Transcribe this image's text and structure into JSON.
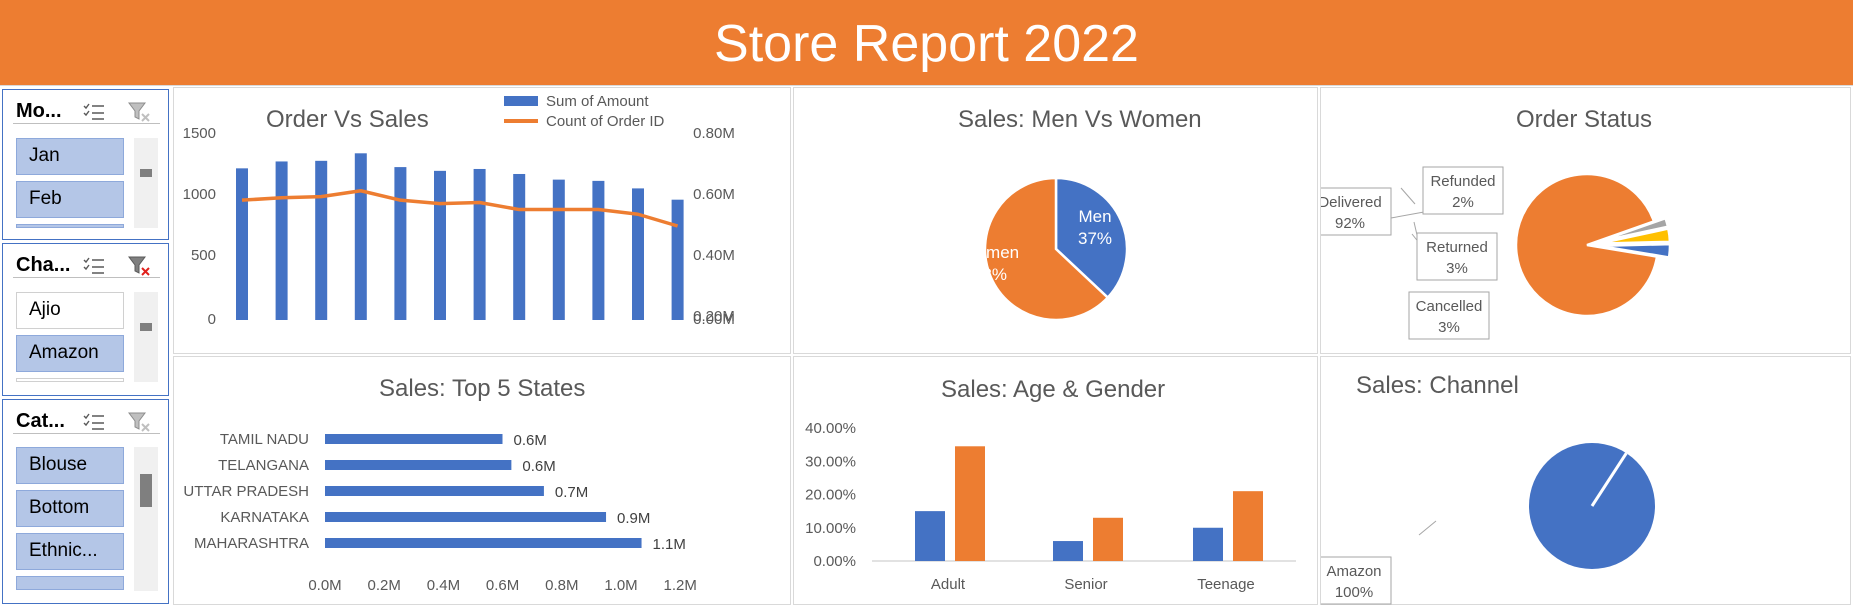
{
  "banner": {
    "title": "Store Report 2022",
    "color": "#ED7D31"
  },
  "slicers": [
    {
      "title": "Mo...",
      "items": [
        {
          "label": "Jan",
          "selected": true
        },
        {
          "label": "Feb",
          "selected": true
        }
      ]
    },
    {
      "title": "Cha...",
      "items": [
        {
          "label": "Ajio",
          "selected": false
        },
        {
          "label": "Amazon",
          "selected": true
        }
      ]
    },
    {
      "title": "Cat...",
      "items": [
        {
          "label": "Blouse",
          "selected": true
        },
        {
          "label": "Bottom",
          "selected": true
        },
        {
          "label": "Ethnic...",
          "selected": true
        }
      ]
    }
  ],
  "slicer_icons": [
    "multi-select-icon",
    "clear-filter-icon"
  ],
  "colors": {
    "blue": "#4472C4",
    "orange": "#ED7D31",
    "yellow": "#FFC000",
    "gray": "#A5A5A5"
  },
  "chart_data": [
    {
      "type": "bar+line",
      "title": "Order Vs Sales",
      "legend": [
        "Sum of Amount",
        "Count of Order ID"
      ],
      "legend_position": "top-right",
      "series": [
        {
          "name": "Sum of Amount",
          "type": "bar",
          "axis": "left",
          "values": [
            1210,
            1265,
            1270,
            1330,
            1220,
            1190,
            1205,
            1165,
            1120,
            1110,
            1050,
            960
          ]
        },
        {
          "name": "Count of Order ID",
          "type": "line",
          "axis": "right",
          "values": [
            0.51,
            0.52,
            0.525,
            0.55,
            0.51,
            0.495,
            0.5,
            0.47,
            0.47,
            0.47,
            0.45,
            0.4
          ]
        }
      ],
      "y_left": {
        "ticks": [
          "1500",
          "1000",
          "500",
          "0"
        ],
        "range": [
          0,
          1500
        ]
      },
      "y_right": {
        "ticks": [
          "0.80M",
          "0.60M",
          "0.40M",
          "0.20M",
          "0.00M"
        ],
        "range": [
          0,
          0.8
        ]
      }
    },
    {
      "type": "pie",
      "title": "Sales: Men Vs Women",
      "slices": [
        {
          "label": "Men",
          "pct": "37%",
          "value": 37,
          "color": "#4472C4"
        },
        {
          "label": "Women",
          "pct": "63%",
          "value": 63,
          "color": "#ED7D31"
        }
      ]
    },
    {
      "type": "pie",
      "title": "Order Status",
      "slices": [
        {
          "label": "Delivered",
          "pct": "92%",
          "value": 92,
          "color": "#ED7D31"
        },
        {
          "label": "Refunded",
          "pct": "2%",
          "value": 2,
          "color": "#A5A5A5"
        },
        {
          "label": "Returned",
          "pct": "3%",
          "value": 3,
          "color": "#FFC000"
        },
        {
          "label": "Cancelled",
          "pct": "3%",
          "value": 3,
          "color": "#4472C4"
        }
      ]
    },
    {
      "type": "bar",
      "orientation": "horizontal",
      "title": "Sales: Top 5 States",
      "categories": [
        "TAMIL NADU",
        "TELANGANA",
        "UTTAR PRADESH",
        "KARNATAKA",
        "MAHARASHTRA"
      ],
      "values": [
        0.6,
        0.63,
        0.74,
        0.95,
        1.07
      ],
      "labels": [
        "0.6M",
        "0.6M",
        "0.7M",
        "0.9M",
        "1.1M"
      ],
      "x_ticks": [
        "0.0M",
        "0.2M",
        "0.4M",
        "0.6M",
        "0.8M",
        "1.0M",
        "1.2M"
      ],
      "xlim": [
        0,
        1.2
      ]
    },
    {
      "type": "bar",
      "title": "Sales: Age & Gender",
      "categories": [
        "Adult",
        "Senior",
        "Teenage"
      ],
      "series": [
        {
          "values": [
            15,
            6,
            10
          ],
          "color": "#4472C4"
        },
        {
          "values": [
            34.5,
            13,
            21
          ],
          "color": "#ED7D31"
        }
      ],
      "y_ticks": [
        "40.00%",
        "30.00%",
        "20.00%",
        "10.00%",
        "0.00%"
      ],
      "ylim": [
        0,
        40
      ]
    },
    {
      "type": "pie",
      "title": "Sales: Channel",
      "slices": [
        {
          "label": "Amazon",
          "pct": "100%",
          "value": 100,
          "color": "#4472C4"
        }
      ]
    }
  ]
}
